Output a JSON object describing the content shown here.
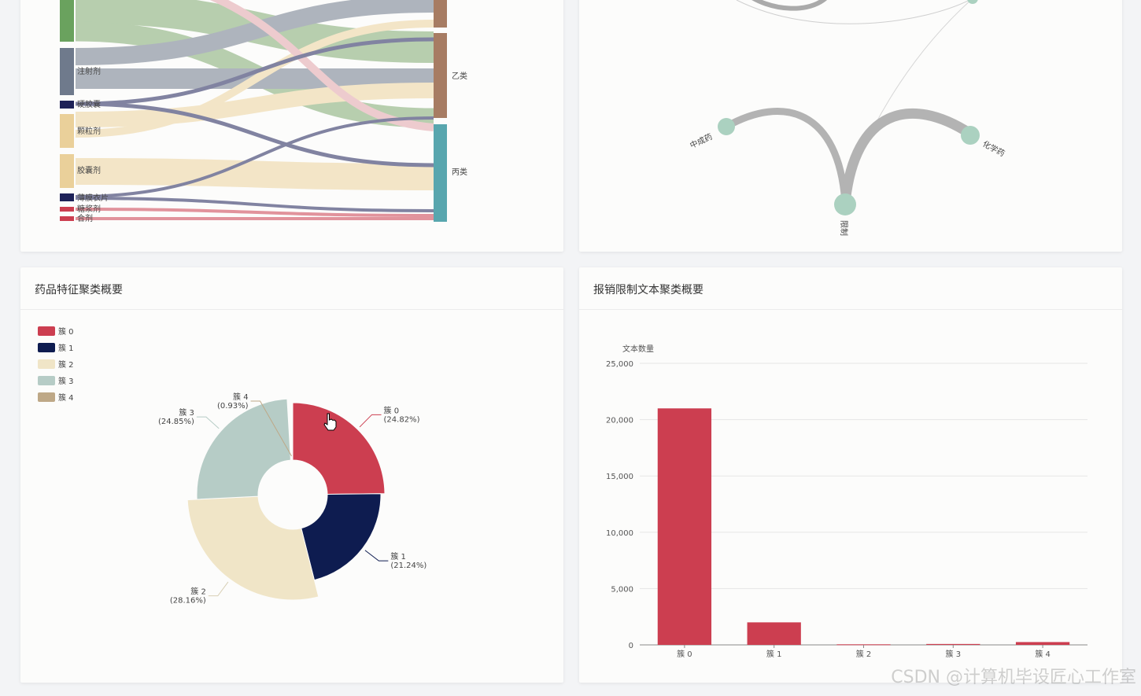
{
  "colors": {
    "accent_red": "#cc3e50",
    "navy": "#0e1c50",
    "cream": "#f0e5c7",
    "sage": "#b6ccc6",
    "tan": "#bea887",
    "sankey_green": "#7faa70",
    "sankey_slate": "#6f7a8c",
    "sankey_pink": "#e2a4ab",
    "sankey_brown": "#a77c63",
    "sankey_teal": "#58a6ae",
    "node_mint": "#abd1c0"
  },
  "sankey": {
    "source_labels": [
      "注射剂",
      "硬胶囊",
      "颗粒剂",
      "胶囊剂",
      "薄膜衣片",
      "糖浆剂",
      "合剂"
    ],
    "target_labels": [
      "乙类",
      "丙类"
    ]
  },
  "network": {
    "node_labels": [
      "中成药",
      "化学药",
      "限制"
    ]
  },
  "pie_card": {
    "title": "药品特征聚类概要",
    "chart_data": {
      "type": "pie",
      "variant": "rose-ring",
      "categories": [
        "簇 0",
        "簇 1",
        "簇 2",
        "簇 3",
        "簇 4"
      ],
      "values": [
        24.82,
        21.24,
        28.16,
        24.85,
        0.93
      ],
      "percent_labels": [
        "(24.82%)",
        "(21.24%)",
        "(28.16%)",
        "(24.85%)",
        "(0.93%)"
      ],
      "legend_position": "top-left"
    }
  },
  "bar_card": {
    "title": "报销限制文本聚类概要",
    "chart_data": {
      "type": "bar",
      "categories": [
        "簇 0",
        "簇 1",
        "簇 2",
        "簇 3",
        "簇 4"
      ],
      "values": [
        21000,
        2000,
        50,
        80,
        250
      ],
      "ylabel": "文本数量",
      "ylim": [
        0,
        25000
      ],
      "yticks": [
        0,
        5000,
        10000,
        15000,
        20000,
        25000
      ],
      "ytick_labels": [
        "0",
        "5,000",
        "10,000",
        "15,000",
        "20,000",
        "25,000"
      ],
      "grid": true
    }
  },
  "watermark": "CSDN @计算机毕设匠心工作室"
}
